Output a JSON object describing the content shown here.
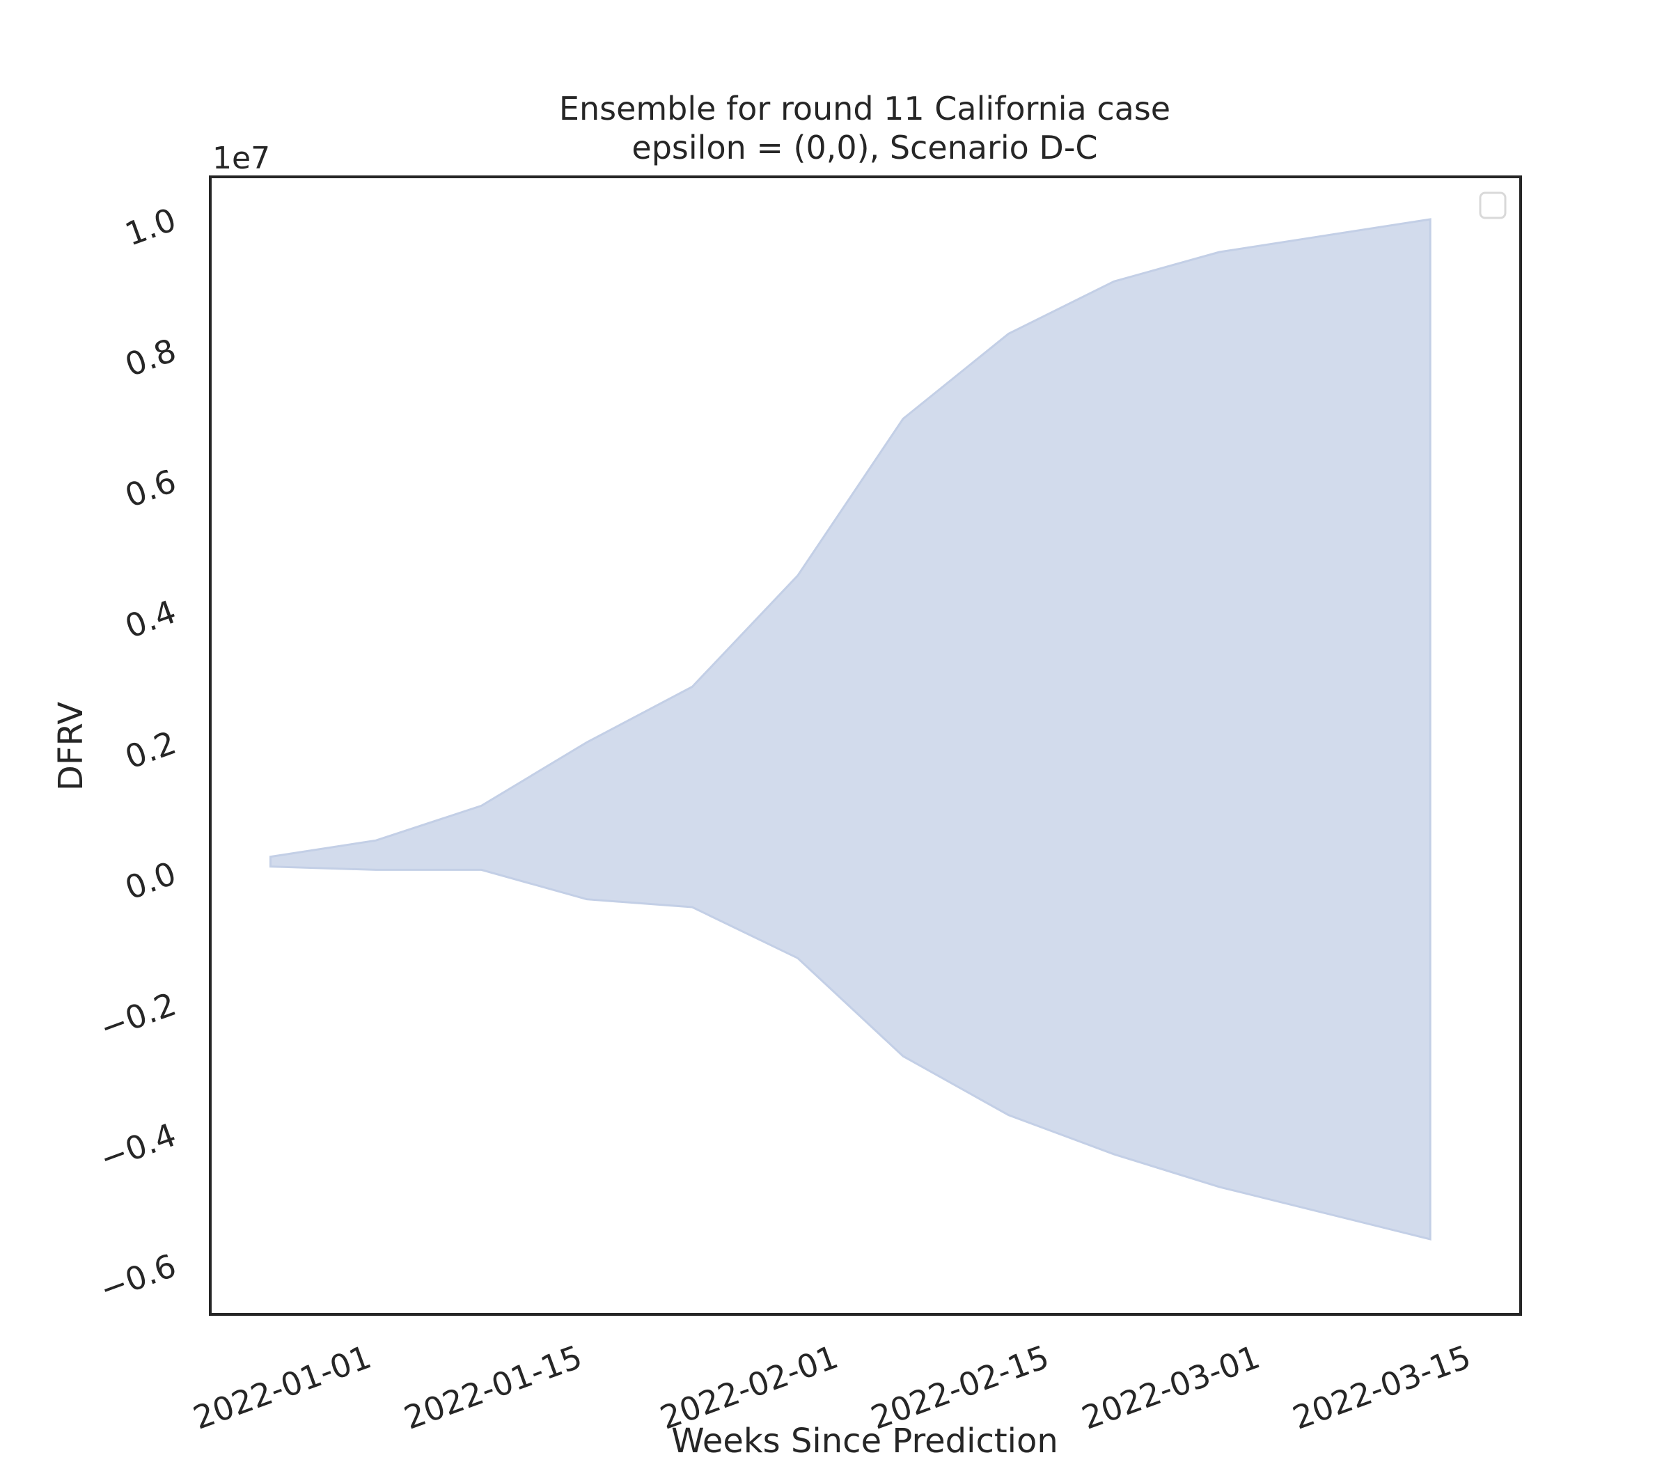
{
  "chart_data": {
    "type": "area",
    "title": "Ensemble for round 11 California case",
    "subtitle": "epsilon = (0,0), Scenario D-C",
    "xlabel": "Weeks Since Prediction",
    "ylabel": "DFRV",
    "y_offset_label": "1e7",
    "x_ticks": [
      "2022-01-01",
      "2022-01-15",
      "2022-02-01",
      "2022-02-15",
      "2022-03-01",
      "2022-03-15"
    ],
    "y_ticks": [
      "−0.6",
      "−0.4",
      "−0.2",
      "0.0",
      "0.2",
      "0.4",
      "0.6",
      "0.8",
      "1.0"
    ],
    "xlim": [
      "2021-12-22",
      "2022-03-19"
    ],
    "ylim": [
      -0.68,
      1.06
    ],
    "y_unit_scale": 10000000,
    "grid": false,
    "legend": "top-right (empty)",
    "fill_color": "#c3cfe6",
    "fill_opacity": 0.75,
    "series": [
      {
        "x": [
          "2021-12-26",
          "2022-01-02",
          "2022-01-09",
          "2022-01-16",
          "2022-01-23",
          "2022-01-30",
          "2022-02-06",
          "2022-02-13",
          "2022-02-20",
          "2022-02-27",
          "2022-03-13"
        ],
        "upper": [
          0.02,
          0.045,
          0.098,
          0.195,
          0.28,
          0.45,
          0.69,
          0.82,
          0.9,
          0.945,
          0.995
        ],
        "lower": [
          0.005,
          0.0,
          0.0,
          -0.045,
          -0.057,
          -0.135,
          -0.285,
          -0.375,
          -0.435,
          -0.485,
          -0.565
        ]
      }
    ]
  }
}
